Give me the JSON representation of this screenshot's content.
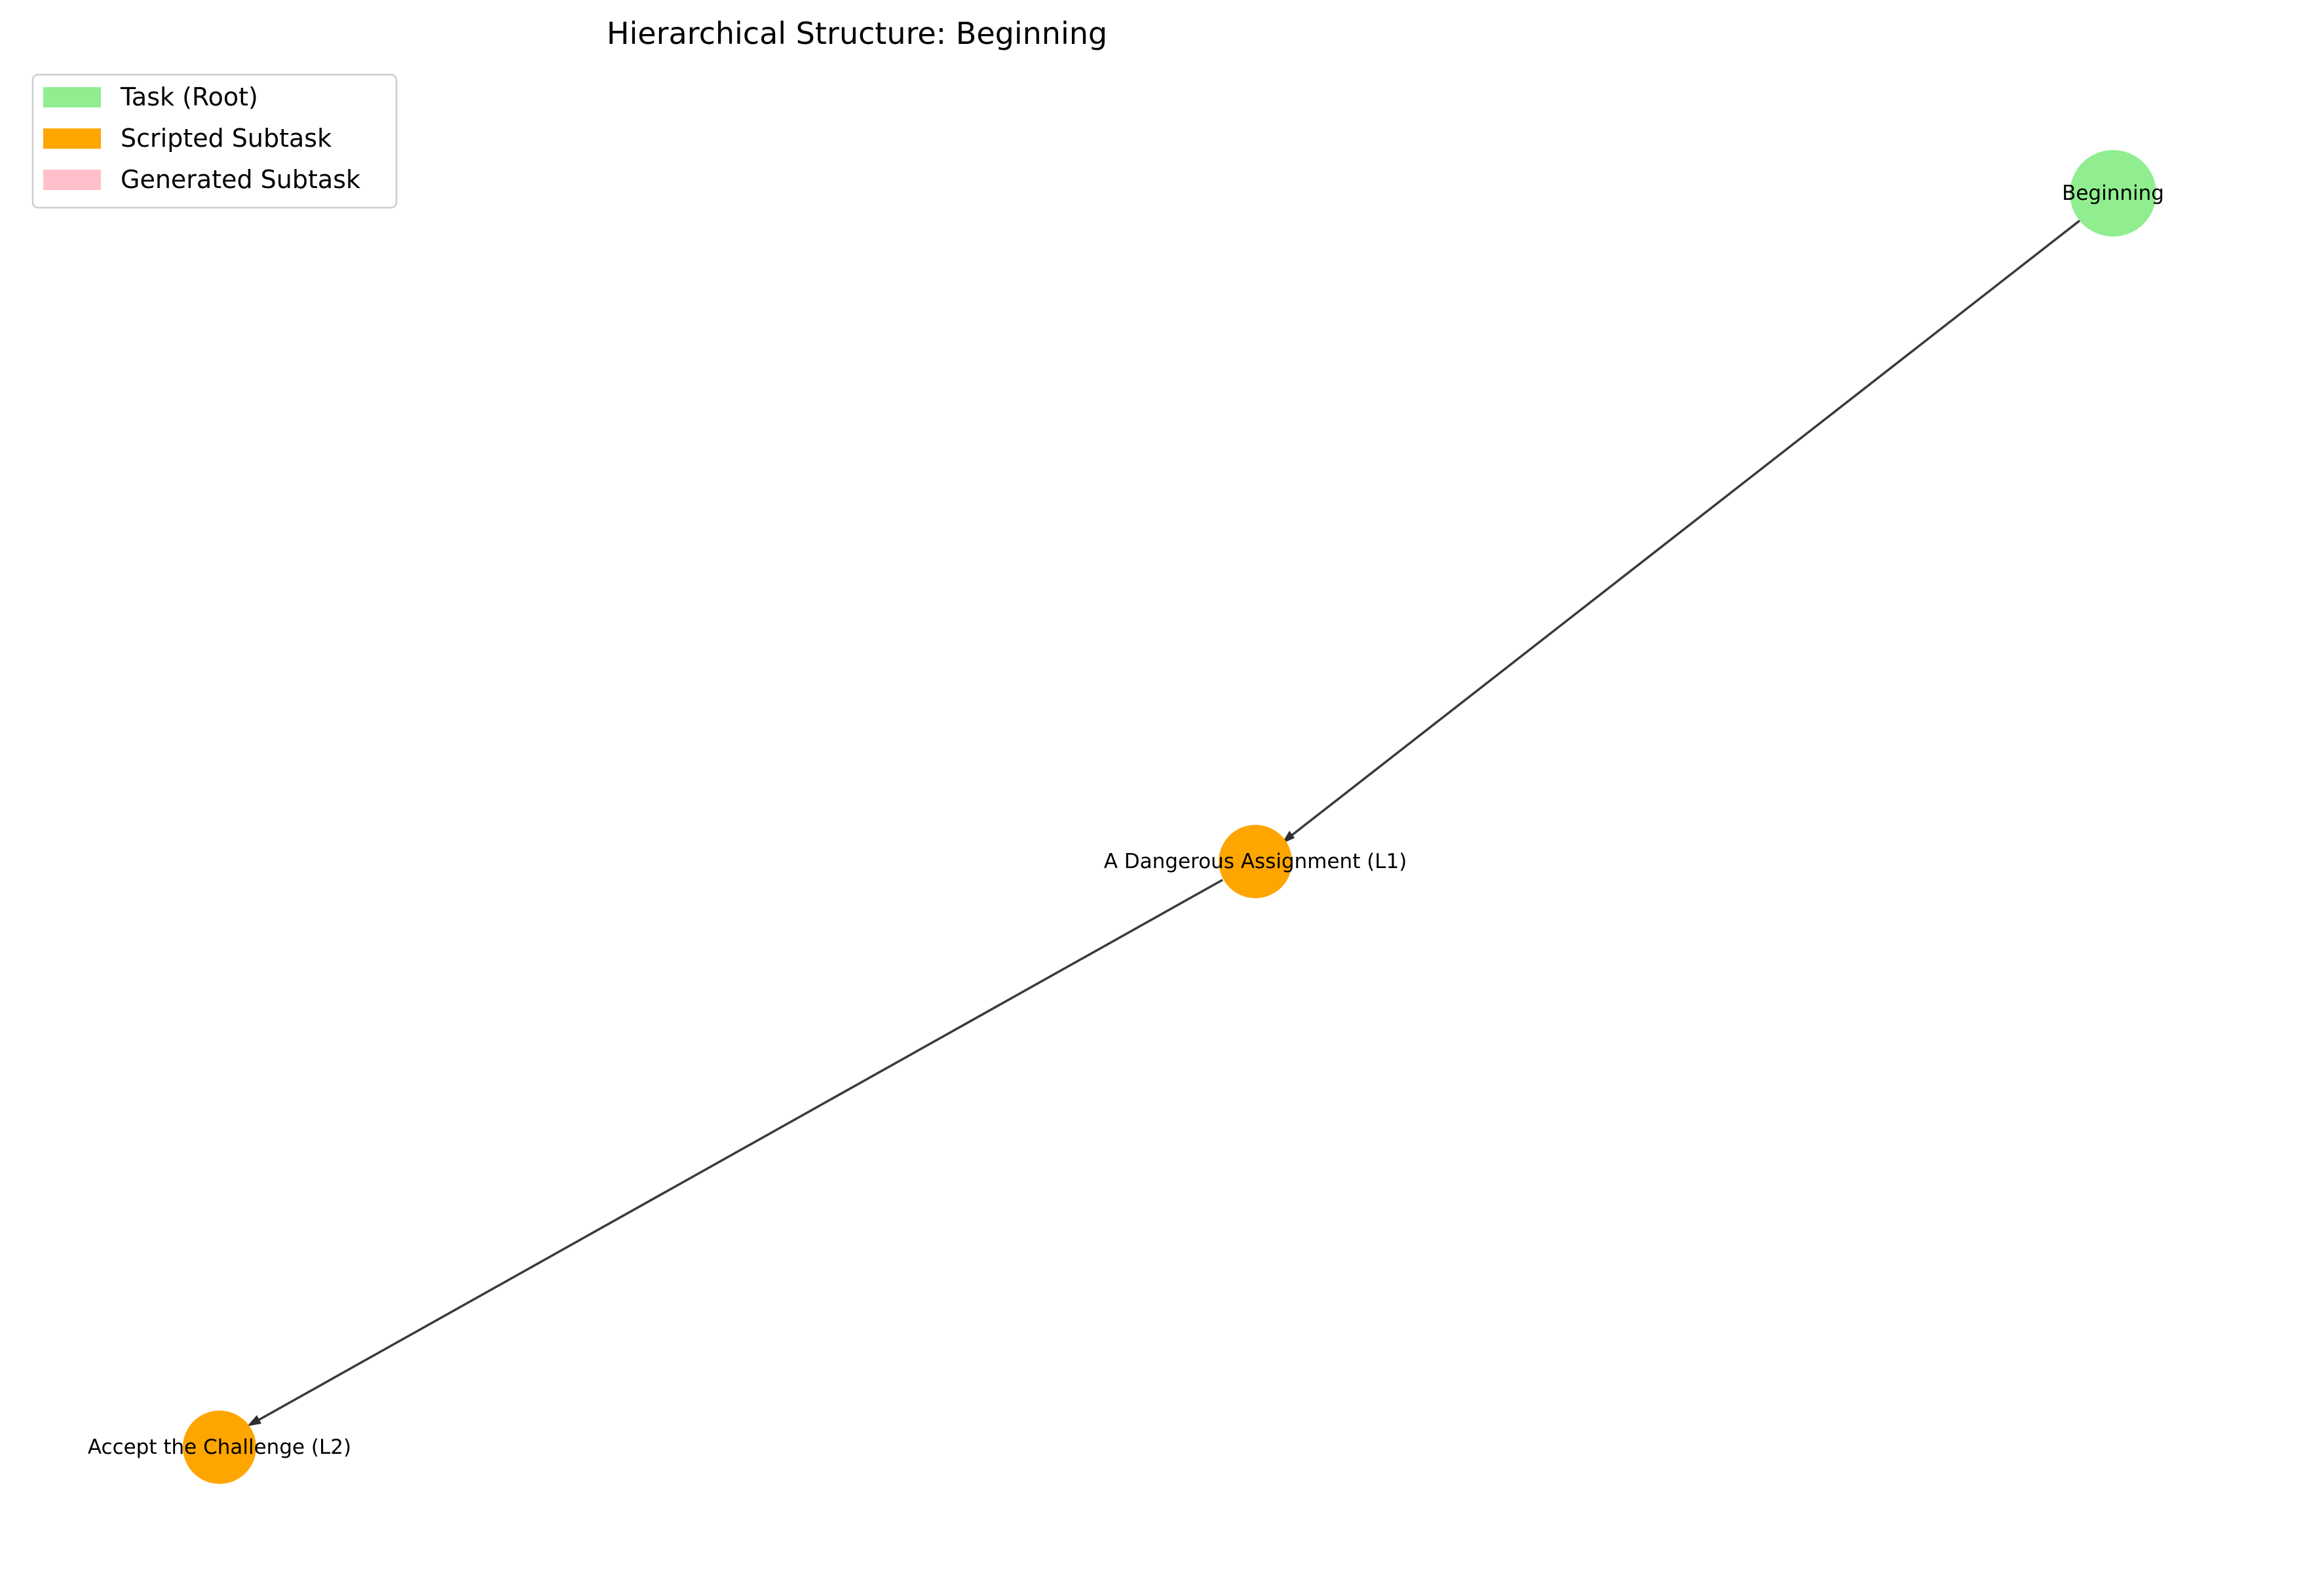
{
  "title": "Hierarchical Structure: Beginning",
  "legend": [
    {
      "label": "Task (Root)",
      "color": "#90ee90"
    },
    {
      "label": "Scripted Subtask",
      "color": "#ffa500"
    },
    {
      "label": "Generated Subtask",
      "color": "#ffc0cb"
    }
  ],
  "nodes": [
    {
      "id": "beginning",
      "label": "Beginning",
      "type": "Task (Root)",
      "color": "#90ee90"
    },
    {
      "id": "dangerous-assignment",
      "label": "A Dangerous Assignment (L1)",
      "type": "Scripted Subtask",
      "color": "#ffa500"
    },
    {
      "id": "accept-challenge",
      "label": "Accept the Challenge (L2)",
      "type": "Scripted Subtask",
      "color": "#ffa500"
    }
  ],
  "edges": [
    {
      "from": "beginning",
      "to": "dangerous-assignment"
    },
    {
      "from": "dangerous-assignment",
      "to": "accept-challenge"
    }
  ],
  "colors": {
    "edge": "#3a3a3a",
    "legend_border": "#cccccc"
  }
}
